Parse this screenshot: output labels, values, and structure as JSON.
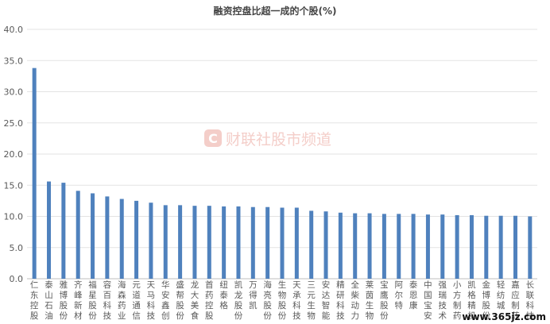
{
  "chart_data": {
    "type": "bar",
    "title": "融资控盘比超一成的个股(%)",
    "xlabel": "",
    "ylabel": "",
    "ylim": [
      0,
      40
    ],
    "yticks": [
      "0.0",
      "5.0",
      "10.0",
      "15.0",
      "20.0",
      "25.0",
      "30.0",
      "35.0",
      "40.0"
    ],
    "grid": true,
    "bar_color": "#4f81bd",
    "categories": [
      "仁东控股",
      "泰山石油",
      "雅博股份",
      "齐峰新材",
      "福星股份",
      "容百科技",
      "海森药业",
      "元道通信",
      "天马科技",
      "华安鑫创",
      "盛帮股份",
      "龙大美食",
      "首药控股",
      "纽泰格",
      "凯龙股份",
      "万得凯",
      "海亮股份",
      "生物股份",
      "天承科技",
      "三元生物",
      "安达智能",
      "精研科技",
      "全柴动力",
      "莱茵生物",
      "宝鹰股份",
      "阿尔特",
      "泰恩康",
      "中国宝安",
      "强瑞技术",
      "小方制药",
      "凯格精机",
      "金博股份",
      "轻纺城",
      "嘉应制药",
      "长联科技"
    ],
    "values": [
      33.8,
      15.6,
      15.4,
      14.1,
      13.7,
      13.2,
      12.8,
      12.5,
      12.2,
      11.8,
      11.8,
      11.7,
      11.7,
      11.6,
      11.6,
      11.5,
      11.5,
      11.4,
      11.4,
      10.9,
      10.8,
      10.6,
      10.5,
      10.5,
      10.4,
      10.4,
      10.4,
      10.3,
      10.3,
      10.2,
      10.2,
      10.1,
      10.1,
      10.1,
      10.0
    ]
  },
  "watermark": {
    "logo_letter": "C",
    "text": "财联社股市频道",
    "logo_color": "#f3c9c4"
  },
  "corner_watermark": {
    "text": "www.365jz.com"
  }
}
